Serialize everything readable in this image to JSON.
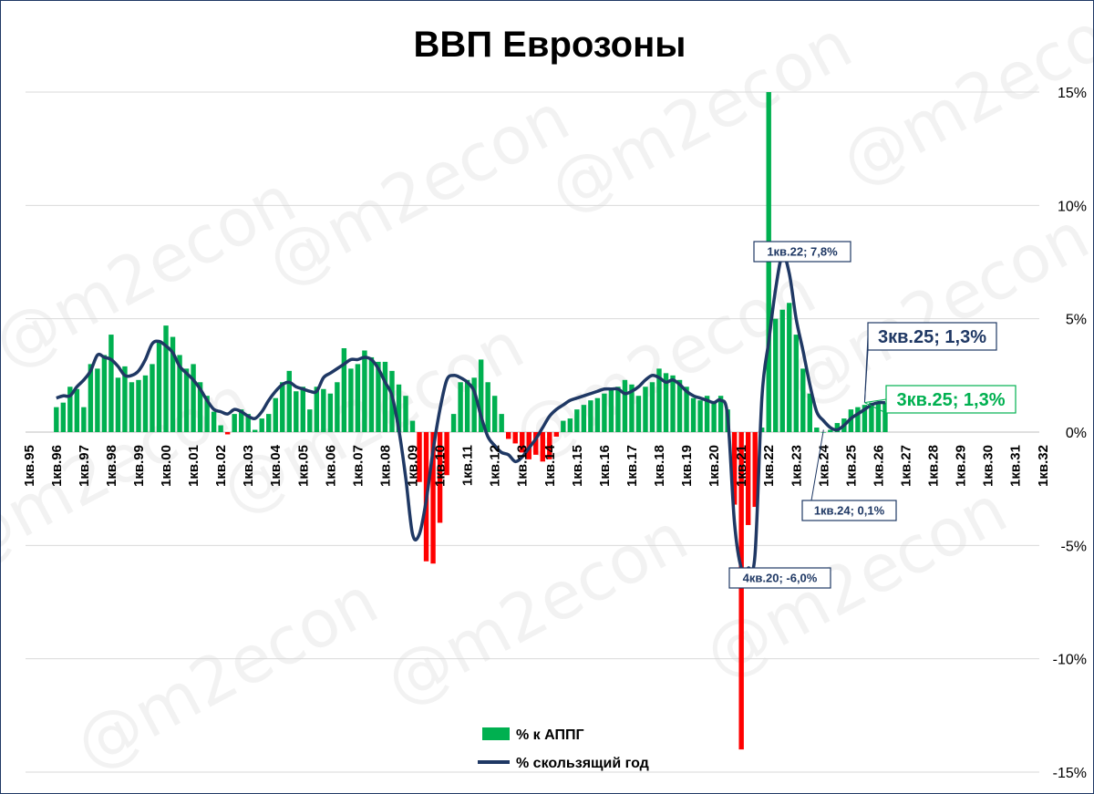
{
  "watermark": "@m2econ",
  "colors": {
    "positive": "#00b050",
    "negative": "#ff0000",
    "line": "#1f3864",
    "grid": "#d9d9d9"
  },
  "chart_data": {
    "type": "bar",
    "title": "ВВП Еврозоны",
    "y_ticks": [
      "15%",
      "10%",
      "5%",
      "0%",
      "-5%",
      "-10%",
      "-15%"
    ],
    "x_ticks": [
      "1кв.95",
      "1кв.96",
      "1кв.97",
      "1кв.98",
      "1кв.99",
      "1кв.00",
      "1кв.01",
      "1кв.02",
      "1кв.03",
      "1кв.04",
      "1кв.05",
      "1кв.06",
      "1кв.07",
      "1кв.08",
      "1кв.09",
      "1кв.10",
      "1кв.11",
      "1кв.12",
      "1кв.13",
      "1кв.14",
      "1кв.15",
      "1кв.16",
      "1кв.17",
      "1кв.18",
      "1кв.19",
      "1кв.20",
      "1кв.21",
      "1кв.22",
      "1кв.23",
      "1кв.24",
      "1кв.25",
      "1кв.26",
      "1кв.27",
      "1кв.28",
      "1кв.29",
      "1кв.30",
      "1кв.31",
      "1кв.32"
    ],
    "ylim": [
      -15,
      15
    ],
    "grid": true,
    "legend_position": "bottom-center",
    "series": [
      {
        "name": "% к АППГ",
        "type": "bar",
        "values": [
          1.1,
          1.3,
          2.0,
          1.9,
          1.1,
          3.0,
          2.8,
          3.4,
          4.3,
          2.4,
          2.9,
          2.2,
          2.3,
          2.5,
          3.0,
          4.0,
          4.7,
          4.2,
          3.4,
          2.8,
          3.0,
          2.2,
          1.6,
          0.9,
          0.3,
          -0.1,
          0.8,
          1.0,
          0.8,
          0.1,
          0.6,
          0.8,
          1.5,
          2.2,
          2.7,
          1.8,
          2.0,
          1.0,
          2.0,
          1.9,
          1.7,
          2.2,
          3.7,
          2.8,
          3.0,
          3.6,
          3.3,
          3.1,
          3.1,
          2.7,
          2.1,
          1.6,
          0.5,
          -2.2,
          -5.7,
          -5.8,
          -4.0,
          -1.9,
          0.8,
          2.2,
          2.3,
          2.4,
          3.2,
          2.2,
          1.6,
          0.8,
          -0.3,
          -0.5,
          -0.9,
          -1.2,
          -1.0,
          -1.3,
          -1.2,
          -0.2,
          0.5,
          0.6,
          1.0,
          1.2,
          1.4,
          1.5,
          1.7,
          1.9,
          2.0,
          2.3,
          2.1,
          1.6,
          2.0,
          2.2,
          2.8,
          2.6,
          2.5,
          2.3,
          2.0,
          1.5,
          1.4,
          1.6,
          1.3,
          1.6,
          1.0,
          -3.2,
          -14.0,
          -4.1,
          -3.3,
          0.2,
          15.0,
          5.0,
          5.4,
          5.7,
          4.3,
          2.8,
          1.7,
          0.2,
          0.0,
          0.1,
          0.4,
          0.6,
          1.0,
          1.1,
          1.2,
          1.3,
          1.3,
          1.3
        ]
      },
      {
        "name": "% скользящий год",
        "type": "line",
        "start_index": 4,
        "values": [
          1.5,
          1.6,
          1.6,
          2.0,
          2.3,
          2.7,
          3.4,
          3.3,
          3.2,
          2.9,
          2.5,
          2.5,
          2.7,
          3.2,
          3.9,
          4.0,
          3.8,
          3.5,
          2.9,
          2.6,
          2.3,
          1.9,
          1.4,
          1.0,
          0.9,
          0.8,
          1.0,
          0.9,
          0.7,
          0.6,
          0.9,
          1.4,
          1.8,
          2.1,
          2.2,
          2.0,
          1.9,
          1.8,
          1.8,
          2.4,
          2.6,
          2.8,
          3.0,
          3.2,
          3.2,
          3.3,
          3.2,
          2.8,
          2.2,
          1.6,
          0.1,
          -2.0,
          -4.5,
          -4.5,
          -3.0,
          -0.8,
          1.0,
          2.3,
          2.5,
          2.4,
          2.2,
          1.8,
          0.7,
          -0.2,
          -0.6,
          -0.9,
          -1.0,
          -1.3,
          -1.1,
          -0.7,
          -0.3,
          0.2,
          0.7,
          1.0,
          1.2,
          1.4,
          1.5,
          1.6,
          1.7,
          1.8,
          1.9,
          1.9,
          1.9,
          1.7,
          1.8,
          2.0,
          2.3,
          2.5,
          2.4,
          2.2,
          2.3,
          2.1,
          1.8,
          1.6,
          1.5,
          1.4,
          1.3,
          1.4,
          0.7,
          -4.0,
          -6.0,
          -6.0,
          -5.4,
          1.5,
          4.0,
          6.3,
          7.8,
          7.0,
          5.0,
          3.6,
          2.1,
          0.9,
          0.5,
          0.2,
          0.1,
          0.3,
          0.6,
          0.8,
          1.0,
          1.2,
          1.3,
          1.3
        ]
      }
    ],
    "annotations": [
      {
        "label": "1кв.22; 7,8%",
        "series": "% скользящий год",
        "x": "1кв.22",
        "y": 7.8
      },
      {
        "label": "4кв.20; -6,0%",
        "series": "% скользящий год",
        "x": "4кв.20",
        "y": -6.0
      },
      {
        "label": "1кв.24; 0,1%",
        "series": "% скользящий год",
        "x": "1кв.24",
        "y": 0.1
      },
      {
        "label": "3кв.25; 1,3%",
        "series": "% скользящий год",
        "x": "3кв.25",
        "y": 1.3,
        "emphasis": true
      },
      {
        "label": "3кв.25; 1,3%",
        "series": "% к АППГ",
        "x": "3кв.25",
        "y": 1.3,
        "emphasis": true
      }
    ]
  }
}
